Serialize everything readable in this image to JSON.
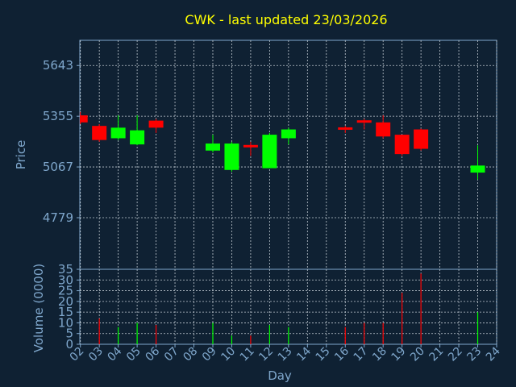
{
  "chart_data": {
    "type": "candlestick",
    "title": "CWK - last updated 23/03/2026",
    "xlabel": "Day",
    "x_ticks": [
      "02",
      "03",
      "04",
      "05",
      "06",
      "07",
      "08",
      "09",
      "10",
      "11",
      "12",
      "13",
      "14",
      "15",
      "16",
      "17",
      "18",
      "19",
      "20",
      "21",
      "22",
      "23",
      "24"
    ],
    "price_panel": {
      "ylabel": "Price",
      "y_ticks": [
        4779,
        5067,
        5355,
        5643
      ],
      "ylim": [
        4486,
        5786
      ],
      "grid": true
    },
    "volume_panel": {
      "ylabel": "Volume (0000)",
      "y_ticks": [
        0,
        5,
        10,
        15,
        20,
        25,
        30,
        35
      ],
      "ylim": [
        0,
        35
      ],
      "grid": true
    },
    "candles": [
      {
        "day": 2.0,
        "open": 5360,
        "close": 5320,
        "high": 5380,
        "low": 5310
      },
      {
        "day": 3.0,
        "open": 5300,
        "close": 5220,
        "high": 5310,
        "low": 5210
      },
      {
        "day": 4.0,
        "open": 5230,
        "close": 5290,
        "high": 5360,
        "low": 5220
      },
      {
        "day": 5.0,
        "open": 5195,
        "close": 5275,
        "high": 5360,
        "low": 5190
      },
      {
        "day": 6.0,
        "open": 5330,
        "close": 5290,
        "high": 5340,
        "low": 5260
      },
      {
        "day": 9.0,
        "open": 5160,
        "close": 5200,
        "high": 5250,
        "low": 5150
      },
      {
        "day": 10.0,
        "open": 5050,
        "close": 5200,
        "high": 5210,
        "low": 5040
      },
      {
        "day": 11.0,
        "open": 5190,
        "close": 5180,
        "high": 5210,
        "low": 5130
      },
      {
        "day": 12.0,
        "open": 5060,
        "close": 5250,
        "high": 5260,
        "low": 5060
      },
      {
        "day": 13.0,
        "open": 5230,
        "close": 5280,
        "high": 5290,
        "low": 5195
      },
      {
        "day": 16.0,
        "open": 5290,
        "close": 5280,
        "high": 5300,
        "low": 5260
      },
      {
        "day": 17.0,
        "open": 5330,
        "close": 5320,
        "high": 5340,
        "low": 5280
      },
      {
        "day": 18.0,
        "open": 5320,
        "close": 5240,
        "high": 5360,
        "low": 5230
      },
      {
        "day": 19.0,
        "open": 5250,
        "close": 5140,
        "high": 5250,
        "low": 5130
      },
      {
        "day": 20.0,
        "open": 5280,
        "close": 5170,
        "high": 5285,
        "low": 5160
      },
      {
        "day": 23.0,
        "open": 5035,
        "close": 5075,
        "high": 5190,
        "low": 4995
      }
    ],
    "volume": [
      {
        "day": 3.0,
        "value": 12,
        "direction": "down"
      },
      {
        "day": 4.0,
        "value": 8,
        "direction": "up"
      },
      {
        "day": 5.0,
        "value": 10,
        "direction": "up"
      },
      {
        "day": 6.0,
        "value": 9,
        "direction": "down"
      },
      {
        "day": 9.0,
        "value": 10,
        "direction": "up"
      },
      {
        "day": 10.0,
        "value": 4,
        "direction": "up"
      },
      {
        "day": 11.0,
        "value": 4,
        "direction": "down"
      },
      {
        "day": 12.0,
        "value": 9,
        "direction": "up"
      },
      {
        "day": 13.0,
        "value": 8,
        "direction": "up"
      },
      {
        "day": 16.0,
        "value": 8,
        "direction": "down"
      },
      {
        "day": 17.0,
        "value": 10,
        "direction": "down"
      },
      {
        "day": 18.0,
        "value": 10,
        "direction": "down"
      },
      {
        "day": 19.0,
        "value": 24,
        "direction": "down"
      },
      {
        "day": 20.0,
        "value": 33,
        "direction": "down"
      },
      {
        "day": 23.0,
        "value": 15,
        "direction": "up"
      }
    ],
    "colors": {
      "background": "#0f2133",
      "up": "#00ff00",
      "down": "#ff0000",
      "title": "#ffff00",
      "axis": "#7fa7cc",
      "grid": "#bfc8d0"
    }
  }
}
